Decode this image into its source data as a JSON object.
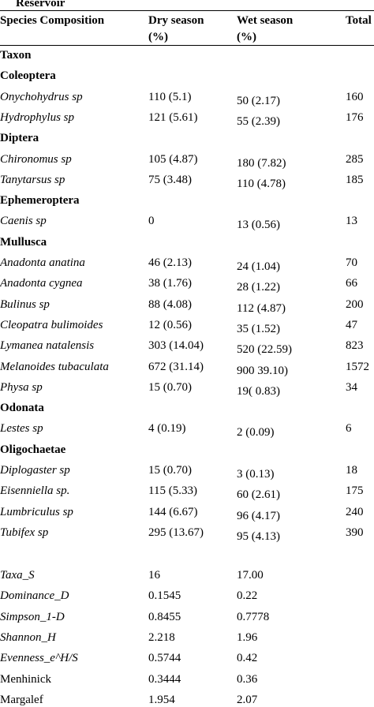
{
  "title_fragment": "Reservoir",
  "columns": {
    "species": "Species Composition",
    "dry": "Dry season",
    "dry_unit": "(%)",
    "wet": "Wet season",
    "wet_unit": "(%)",
    "total": "Total"
  },
  "rows": [
    {
      "kind": "group",
      "name": "Taxon"
    },
    {
      "kind": "group",
      "name": "Coleoptera"
    },
    {
      "kind": "species",
      "name": "Onychohydrus sp",
      "dry": "110 (5.1)",
      "wet": "50 (2.17)",
      "total": "160"
    },
    {
      "kind": "species",
      "name": "Hydrophylus sp",
      "dry": "121 (5.61)",
      "wet": "55 (2.39)",
      "total": "176"
    },
    {
      "kind": "group",
      "name": "Diptera"
    },
    {
      "kind": "species",
      "name": "Chironomus sp",
      "dry": "105 (4.87)",
      "wet": "180 (7.82)",
      "total": "285"
    },
    {
      "kind": "species",
      "name": "Tanytarsus sp",
      "dry": "75 (3.48)",
      "wet": "110 (4.78)",
      "total": "185"
    },
    {
      "kind": "group",
      "name": "Ephemeroptera"
    },
    {
      "kind": "species",
      "name": "Caenis sp",
      "dry": "0",
      "wet": "13 (0.56)",
      "total": "13"
    },
    {
      "kind": "group",
      "name": "Mullusca"
    },
    {
      "kind": "species",
      "name": "Anadonta anatina",
      "dry": "46 (2.13)",
      "wet": "24 (1.04)",
      "total": "70"
    },
    {
      "kind": "species",
      "name": "Anadonta cygnea",
      "dry": "38 (1.76)",
      "wet": "28 (1.22)",
      "total": "66"
    },
    {
      "kind": "species",
      "name": "Bulinus sp",
      "dry": "88 (4.08)",
      "wet": "112 (4.87)",
      "total": "200"
    },
    {
      "kind": "species",
      "name": "Cleopatra bulimoides",
      "dry": "12 (0.56)",
      "wet": "35 (1.52)",
      "total": "47"
    },
    {
      "kind": "species",
      "name": "Lymanea natalensis",
      "dry": "303 (14.04)",
      "wet": "520 (22.59)",
      "total": "823"
    },
    {
      "kind": "species",
      "name": "Melanoides tubaculata",
      "dry": "672 (31.14)",
      "wet": "900 39.10)",
      "total": "1572"
    },
    {
      "kind": "species",
      "name": "Physa sp",
      "dry": "15 (0.70)",
      "wet": "19( 0.83)",
      "total": "34"
    },
    {
      "kind": "group",
      "name": "Odonata"
    },
    {
      "kind": "species",
      "name": "Lestes sp",
      "dry": "4 (0.19)",
      "wet": "2 (0.09)",
      "total": "6"
    },
    {
      "kind": "group",
      "name": "Oligochaetae"
    },
    {
      "kind": "species",
      "name": "Diplogaster sp",
      "dry": "15 (0.70)",
      "wet": "3 (0.13)",
      "total": "18"
    },
    {
      "kind": "species",
      "name": "Eisenniella  sp.",
      "dry": "115 (5.33)",
      "wet": "60 (2.61)",
      "total": "175"
    },
    {
      "kind": "species",
      "name": "Lumbriculus sp",
      "dry": "144 (6.67)",
      "wet": "96 (4.17)",
      "total": "240"
    },
    {
      "kind": "species",
      "name": "Tubifex sp",
      "dry": "295 (13.67)",
      "wet": "95 (4.13)",
      "total": "390"
    }
  ],
  "indices": [
    {
      "name": "Taxa_S",
      "italic": true,
      "dry": "16",
      "wet": "17.00"
    },
    {
      "name": "Dominance_D",
      "italic": true,
      "dry": "0.1545",
      "wet": "0.22"
    },
    {
      "name": "Simpson_1-D",
      "italic": true,
      "dry": "0.8455",
      "wet": "0.7778"
    },
    {
      "name": "Shannon_H",
      "italic": true,
      "dry": "2.218",
      "wet": "1.96"
    },
    {
      "name": "Evenness_e^H/S",
      "italic": true,
      "dry": "0.5744",
      "wet": "0.42"
    },
    {
      "name": "Menhinick",
      "italic": false,
      "dry": "0.3444",
      "wet": "0.36"
    },
    {
      "name": "Margalef",
      "italic": false,
      "dry": "1.954",
      "wet": "2.07"
    }
  ]
}
